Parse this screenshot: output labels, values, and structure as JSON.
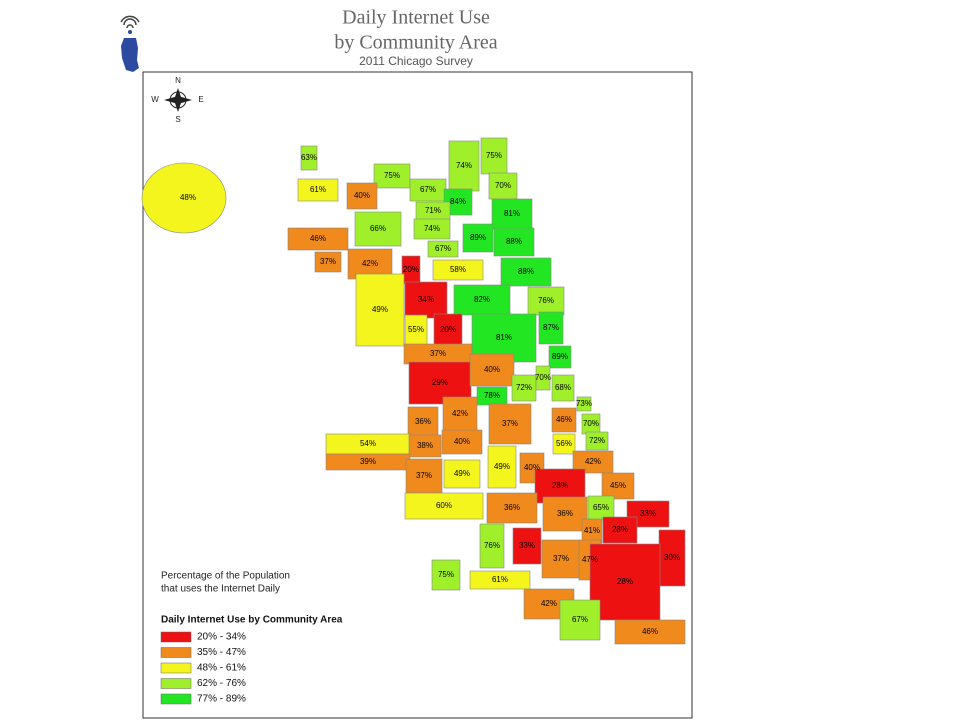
{
  "header": {
    "title_line1": "Daily Internet Use",
    "title_line2": "by Community Area",
    "subtitle": "2011 Chicago Survey"
  },
  "compass": {
    "north": "N",
    "south": "S",
    "east": "E",
    "west": "W"
  },
  "note": {
    "line1": "Percentage of the Population",
    "line2": "that uses the Internet Daily"
  },
  "legend": {
    "title": "Daily Internet Use by Community Area",
    "items": [
      {
        "label": "20% - 34%",
        "color": "#ee1111"
      },
      {
        "label": "35% - 47%",
        "color": "#f08a1c"
      },
      {
        "label": "48% - 61%",
        "color": "#f5f51e"
      },
      {
        "label": "62% - 76%",
        "color": "#9fef2a"
      },
      {
        "label": "77% - 89%",
        "color": "#22e622"
      }
    ]
  },
  "areas": [
    {
      "label": "48%",
      "bin": 2
    },
    {
      "label": "63%",
      "bin": 3
    },
    {
      "label": "61%",
      "bin": 2
    },
    {
      "label": "75%",
      "bin": 3
    },
    {
      "label": "40%",
      "bin": 1
    },
    {
      "label": "67%",
      "bin": 3
    },
    {
      "label": "74%",
      "bin": 3
    },
    {
      "label": "75%",
      "bin": 3
    },
    {
      "label": "70%",
      "bin": 3
    },
    {
      "label": "84%",
      "bin": 4
    },
    {
      "label": "81%",
      "bin": 4
    },
    {
      "label": "71%",
      "bin": 3
    },
    {
      "label": "66%",
      "bin": 3
    },
    {
      "label": "74%",
      "bin": 3
    },
    {
      "label": "89%",
      "bin": 4
    },
    {
      "label": "88%",
      "bin": 4
    },
    {
      "label": "46%",
      "bin": 1
    },
    {
      "label": "67%",
      "bin": 3
    },
    {
      "label": "37%",
      "bin": 1
    },
    {
      "label": "42%",
      "bin": 1
    },
    {
      "label": "20%",
      "bin": 0
    },
    {
      "label": "58%",
      "bin": 2
    },
    {
      "label": "88%",
      "bin": 4
    },
    {
      "label": "34%",
      "bin": 0
    },
    {
      "label": "82%",
      "bin": 4
    },
    {
      "label": "76%",
      "bin": 3
    },
    {
      "label": "49%",
      "bin": 2
    },
    {
      "label": "55%",
      "bin": 2
    },
    {
      "label": "20%",
      "bin": 0
    },
    {
      "label": "81%",
      "bin": 4
    },
    {
      "label": "87%",
      "bin": 4
    },
    {
      "label": "37%",
      "bin": 1
    },
    {
      "label": "89%",
      "bin": 4
    },
    {
      "label": "29%",
      "bin": 0
    },
    {
      "label": "40%",
      "bin": 1
    },
    {
      "label": "72%",
      "bin": 3
    },
    {
      "label": "70%",
      "bin": 3
    },
    {
      "label": "68%",
      "bin": 3
    },
    {
      "label": "78%",
      "bin": 4
    },
    {
      "label": "73%",
      "bin": 3
    },
    {
      "label": "42%",
      "bin": 1
    },
    {
      "label": "36%",
      "bin": 1
    },
    {
      "label": "37%",
      "bin": 1
    },
    {
      "label": "46%",
      "bin": 1
    },
    {
      "label": "70%",
      "bin": 3
    },
    {
      "label": "54%",
      "bin": 2
    },
    {
      "label": "38%",
      "bin": 1
    },
    {
      "label": "40%",
      "bin": 1
    },
    {
      "label": "56%",
      "bin": 2
    },
    {
      "label": "72%",
      "bin": 3
    },
    {
      "label": "39%",
      "bin": 1
    },
    {
      "label": "49%",
      "bin": 2
    },
    {
      "label": "49%",
      "bin": 2
    },
    {
      "label": "40%",
      "bin": 1
    },
    {
      "label": "42%",
      "bin": 1
    },
    {
      "label": "37%",
      "bin": 1
    },
    {
      "label": "28%",
      "bin": 0
    },
    {
      "label": "45%",
      "bin": 1
    },
    {
      "label": "60%",
      "bin": 2
    },
    {
      "label": "36%",
      "bin": 1
    },
    {
      "label": "36%",
      "bin": 1
    },
    {
      "label": "65%",
      "bin": 3
    },
    {
      "label": "33%",
      "bin": 0
    },
    {
      "label": "28%",
      "bin": 0
    },
    {
      "label": "41%",
      "bin": 1
    },
    {
      "label": "76%",
      "bin": 3
    },
    {
      "label": "33%",
      "bin": 0
    },
    {
      "label": "37%",
      "bin": 1
    },
    {
      "label": "47%",
      "bin": 1
    },
    {
      "label": "30%",
      "bin": 0
    },
    {
      "label": "75%",
      "bin": 3
    },
    {
      "label": "61%",
      "bin": 2
    },
    {
      "label": "28%",
      "bin": 0
    },
    {
      "label": "42%",
      "bin": 1
    },
    {
      "label": "67%",
      "bin": 3
    },
    {
      "label": "46%",
      "bin": 1
    }
  ]
}
